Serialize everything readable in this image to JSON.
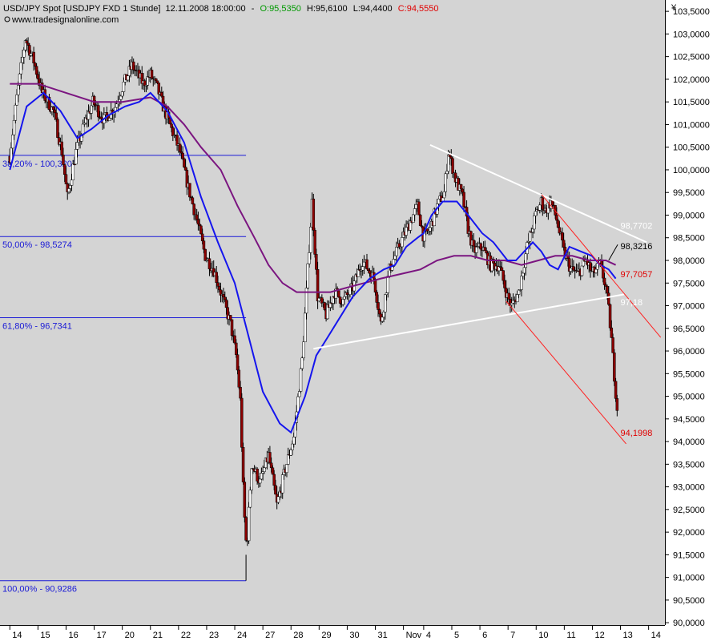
{
  "header": {
    "symbol": "USD/JPY Spot [USDJPY FXD  1 Stunde]",
    "datetime": "12.11.2008 18:00:00",
    "separator": "-",
    "open": "O:95,5350",
    "high": "H:95,6100",
    "low": "L:94,4400",
    "close": "C:94,5550",
    "source": "www.tradesignalonline.com",
    "currency_symbol": "¥",
    "close_color": "#e00000",
    "open_color": "#009900"
  },
  "chart_data": {
    "type": "candlestick",
    "y_ticks": [
      "103,5000",
      "103,0000",
      "102,5000",
      "102,0000",
      "101,5000",
      "101,0000",
      "100,5000",
      "100,0000",
      "99,5000",
      "99,0000",
      "98,5000",
      "98,0000",
      "97,5000",
      "97,0000",
      "96,5000",
      "96,0000",
      "95,5000",
      "95,0000",
      "94,5000",
      "94,0000",
      "93,5000",
      "93,0000",
      "92,5000",
      "92,0000",
      "91,5000",
      "91,0000",
      "90,5000",
      "90,0000"
    ],
    "y_tick_values": [
      103.5,
      103,
      102.5,
      102,
      101.5,
      101,
      100.5,
      100,
      99.5,
      99,
      98.5,
      98,
      97.5,
      97,
      96.5,
      96,
      95.5,
      95,
      94.5,
      94,
      93.5,
      93,
      92.5,
      92,
      91.5,
      91,
      90.5,
      90
    ],
    "ylim": [
      89.95,
      103.75
    ],
    "x_ticks": [
      {
        "label": "14",
        "pos": 0
      },
      {
        "label": "15",
        "pos": 1
      },
      {
        "label": "16",
        "pos": 2
      },
      {
        "label": "17",
        "pos": 3
      },
      {
        "label": "20",
        "pos": 4
      },
      {
        "label": "21",
        "pos": 5
      },
      {
        "label": "22",
        "pos": 6
      },
      {
        "label": "23",
        "pos": 7
      },
      {
        "label": "24",
        "pos": 8
      },
      {
        "label": "27",
        "pos": 9
      },
      {
        "label": "28",
        "pos": 10
      },
      {
        "label": "29",
        "pos": 11
      },
      {
        "label": "30",
        "pos": 12
      },
      {
        "label": "31",
        "pos": 13
      },
      {
        "label": "Nov",
        "pos": 14
      },
      {
        "label": "4",
        "pos": 14.72
      },
      {
        "label": "5",
        "pos": 15.72
      },
      {
        "label": "6",
        "pos": 16.72
      },
      {
        "label": "7",
        "pos": 17.72
      },
      {
        "label": "10",
        "pos": 18.72
      },
      {
        "label": "11",
        "pos": 19.72
      },
      {
        "label": "12",
        "pos": 20.72
      },
      {
        "label": "13",
        "pos": 21.72
      },
      {
        "label": "14",
        "pos": 22.72
      }
    ],
    "xlim": [
      -0.35,
      23.3
    ],
    "price_path": [
      [
        0,
        100.3
      ],
      [
        0.25,
        101.6
      ],
      [
        0.55,
        102.9
      ],
      [
        0.85,
        102.4
      ],
      [
        1.15,
        101.7
      ],
      [
        1.55,
        101.3
      ],
      [
        1.85,
        100.4
      ],
      [
        2.05,
        99.4
      ],
      [
        2.35,
        100.4
      ],
      [
        2.65,
        101.0
      ],
      [
        2.95,
        101.5
      ],
      [
        3.35,
        101.1
      ],
      [
        3.75,
        101.4
      ],
      [
        4.05,
        101.9
      ],
      [
        4.35,
        102.3
      ],
      [
        4.75,
        101.9
      ],
      [
        5.0,
        102.1
      ],
      [
        5.25,
        101.8
      ],
      [
        5.45,
        101.4
      ],
      [
        5.75,
        100.9
      ],
      [
        6.05,
        100.4
      ],
      [
        6.35,
        99.6
      ],
      [
        6.65,
        98.9
      ],
      [
        6.95,
        98.1
      ],
      [
        7.25,
        97.8
      ],
      [
        7.55,
        97.2
      ],
      [
        7.85,
        96.6
      ],
      [
        8.05,
        95.9
      ],
      [
        8.2,
        94.9
      ],
      [
        8.32,
        92.6
      ],
      [
        8.42,
        91.6
      ],
      [
        8.6,
        93.5
      ],
      [
        8.9,
        93.1
      ],
      [
        9.2,
        93.7
      ],
      [
        9.5,
        92.6
      ],
      [
        9.8,
        93.4
      ],
      [
        10.1,
        94.1
      ],
      [
        10.4,
        95.8
      ],
      [
        10.6,
        97.8
      ],
      [
        10.75,
        99.3
      ],
      [
        10.95,
        97.2
      ],
      [
        11.25,
        96.8
      ],
      [
        11.55,
        97.3
      ],
      [
        11.85,
        97.1
      ],
      [
        12.2,
        97.4
      ],
      [
        12.55,
        98.0
      ],
      [
        12.95,
        97.6
      ],
      [
        13.2,
        96.6
      ],
      [
        13.5,
        97.8
      ],
      [
        13.9,
        98.4
      ],
      [
        14.2,
        98.8
      ],
      [
        14.5,
        99.2
      ],
      [
        14.72,
        98.5
      ],
      [
        14.95,
        98.7
      ],
      [
        15.2,
        99.2
      ],
      [
        15.45,
        99.5
      ],
      [
        15.6,
        100.4
      ],
      [
        15.85,
        99.8
      ],
      [
        16.1,
        99.4
      ],
      [
        16.3,
        98.7
      ],
      [
        16.5,
        98.2
      ],
      [
        16.8,
        98.3
      ],
      [
        17.1,
        97.9
      ],
      [
        17.4,
        97.9
      ],
      [
        17.7,
        97.2
      ],
      [
        17.85,
        97.0
      ],
      [
        18.1,
        97.3
      ],
      [
        18.4,
        98.3
      ],
      [
        18.7,
        99.0
      ],
      [
        18.9,
        99.3
      ],
      [
        19.05,
        99.1
      ],
      [
        19.25,
        99.3
      ],
      [
        19.45,
        98.9
      ],
      [
        19.7,
        98.2
      ],
      [
        19.95,
        97.8
      ],
      [
        20.2,
        97.7
      ],
      [
        20.5,
        98.0
      ],
      [
        20.72,
        97.7
      ],
      [
        21.0,
        97.9
      ],
      [
        21.2,
        97.4
      ],
      [
        21.32,
        96.8
      ],
      [
        21.42,
        96.1
      ],
      [
        21.52,
        95.3
      ],
      [
        21.62,
        94.6
      ]
    ],
    "ma_blue": [
      [
        0,
        100.0
      ],
      [
        0.6,
        101.4
      ],
      [
        1.2,
        101.7
      ],
      [
        1.8,
        101.3
      ],
      [
        2.4,
        100.7
      ],
      [
        2.9,
        100.9
      ],
      [
        3.5,
        101.2
      ],
      [
        4.1,
        101.4
      ],
      [
        4.6,
        101.5
      ],
      [
        5.0,
        101.7
      ],
      [
        5.6,
        101.3
      ],
      [
        6.2,
        100.6
      ],
      [
        6.8,
        99.4
      ],
      [
        7.4,
        98.4
      ],
      [
        8.0,
        97.5
      ],
      [
        8.5,
        96.3
      ],
      [
        9.0,
        95.1
      ],
      [
        9.6,
        94.4
      ],
      [
        10.0,
        94.2
      ],
      [
        10.5,
        95.0
      ],
      [
        10.9,
        95.9
      ],
      [
        11.3,
        96.3
      ],
      [
        11.8,
        96.8
      ],
      [
        12.2,
        97.2
      ],
      [
        12.8,
        97.6
      ],
      [
        13.3,
        97.8
      ],
      [
        13.7,
        97.9
      ],
      [
        14.1,
        98.3
      ],
      [
        14.5,
        98.5
      ],
      [
        14.72,
        98.6
      ],
      [
        15.0,
        99.0
      ],
      [
        15.4,
        99.3
      ],
      [
        15.9,
        99.3
      ],
      [
        16.3,
        99.0
      ],
      [
        16.8,
        98.6
      ],
      [
        17.2,
        98.4
      ],
      [
        17.7,
        98.0
      ],
      [
        18.0,
        98.0
      ],
      [
        18.3,
        98.2
      ],
      [
        18.6,
        98.4
      ],
      [
        18.9,
        98.2
      ],
      [
        19.2,
        97.9
      ],
      [
        19.5,
        97.8
      ],
      [
        19.9,
        98.3
      ],
      [
        20.3,
        98.2
      ],
      [
        20.7,
        98.1
      ],
      [
        21.0,
        97.9
      ],
      [
        21.3,
        97.8
      ],
      [
        21.55,
        97.6
      ]
    ],
    "ma_purple": [
      [
        0,
        101.9
      ],
      [
        1.0,
        101.9
      ],
      [
        2.0,
        101.7
      ],
      [
        3.0,
        101.5
      ],
      [
        4.0,
        101.5
      ],
      [
        5.0,
        101.6
      ],
      [
        5.6,
        101.4
      ],
      [
        6.2,
        101.0
      ],
      [
        6.8,
        100.5
      ],
      [
        7.5,
        100.0
      ],
      [
        8.1,
        99.2
      ],
      [
        8.7,
        98.5
      ],
      [
        9.2,
        97.9
      ],
      [
        9.7,
        97.5
      ],
      [
        10.2,
        97.3
      ],
      [
        10.8,
        97.3
      ],
      [
        11.4,
        97.3
      ],
      [
        12.0,
        97.4
      ],
      [
        12.6,
        97.5
      ],
      [
        13.2,
        97.6
      ],
      [
        13.9,
        97.7
      ],
      [
        14.6,
        97.8
      ],
      [
        15.2,
        98.0
      ],
      [
        15.8,
        98.1
      ],
      [
        16.4,
        98.1
      ],
      [
        17.0,
        98.0
      ],
      [
        17.6,
        98.0
      ],
      [
        18.2,
        97.9
      ],
      [
        18.8,
        98.0
      ],
      [
        19.4,
        98.1
      ],
      [
        20.0,
        98.1
      ],
      [
        20.6,
        98.0
      ],
      [
        21.2,
        98.0
      ],
      [
        21.55,
        97.9
      ]
    ],
    "fib_levels": [
      {
        "label": "38,20% - 100,3207",
        "value": 100.3207
      },
      {
        "label": "50,00% - 98,5274",
        "value": 98.5274
      },
      {
        "label": "61,80% - 96,7341",
        "value": 96.7341
      },
      {
        "label": "100,00% - 90,9286",
        "value": 90.9286
      }
    ],
    "fib_x_end": 8.4,
    "fib_color": "#1a1ad6",
    "trendlines": [
      {
        "x1": 14.95,
        "y1": 100.55,
        "x2": 22.65,
        "y2": 98.4,
        "color": "#ffffff"
      },
      {
        "x1": 10.8,
        "y1": 96.05,
        "x2": 21.85,
        "y2": 97.25,
        "color": "#ffffff"
      },
      {
        "x1": 18.92,
        "y1": 99.45,
        "x2": 23.15,
        "y2": 96.3,
        "color": "#ff2020"
      },
      {
        "x1": 17.65,
        "y1": 97.1,
        "x2": 21.92,
        "y2": 93.95,
        "color": "#ff2020"
      },
      {
        "x1": 21.3,
        "y1": 98.0,
        "x2": 21.62,
        "y2": 98.35,
        "color": "#000000"
      }
    ],
    "annotations": [
      {
        "text": "98,7702",
        "color": "#ffffff",
        "x": 21.72,
        "y": 98.77
      },
      {
        "text": "98,3216",
        "color": "#000000",
        "x": 21.72,
        "y": 98.32
      },
      {
        "text": "97,7057",
        "color": "#e00000",
        "x": 21.72,
        "y": 97.7
      },
      {
        "text": "97,18",
        "color": "#ffffff",
        "x": 21.72,
        "y": 97.08
      },
      {
        "text": "94,1998",
        "color": "#e00000",
        "x": 21.72,
        "y": 94.2
      }
    ],
    "colors": {
      "background": "#d4d4d4",
      "up_candle": "#ffffff",
      "down_candle": "#8b0000",
      "ma_blue": "#1515ee",
      "ma_purple": "#7b1580",
      "grid": "#000000"
    }
  }
}
